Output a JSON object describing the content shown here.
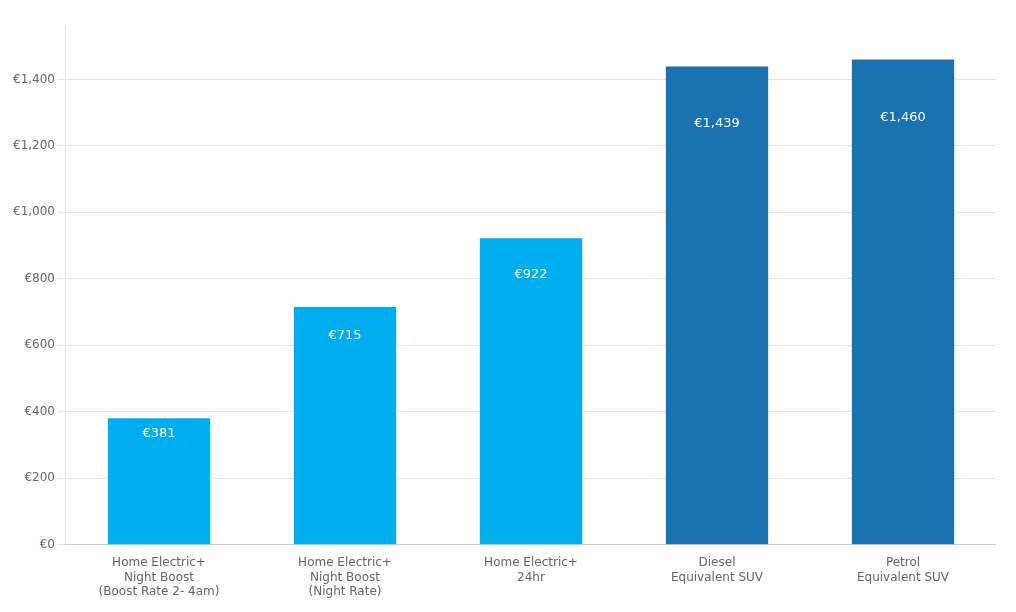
{
  "chart_data": {
    "type": "bar",
    "categories": [
      "Home Electric+\nNight Boost\n(Boost Rate 2- 4am)",
      "Home Electric+\nNight Boost\n(Night Rate)",
      "Home Electric+\n24hr",
      "Diesel\nEquivalent SUV",
      "Petrol\nEquivalent SUV"
    ],
    "values": [
      381,
      715,
      922,
      1439,
      1460
    ],
    "value_labels": [
      "€381",
      "€715",
      "€922",
      "€1,439",
      "€1,460"
    ],
    "data_labels": true,
    "colors": [
      "#00AEEF",
      "#00AEEF",
      "#00AEEF",
      "#1A72B0",
      "#1A72B0"
    ],
    "ylim": [
      0,
      1560
    ],
    "yticks": [
      {
        "value": 0,
        "label": "€0"
      },
      {
        "value": 200,
        "label": "€200"
      },
      {
        "value": 400,
        "label": "€400"
      },
      {
        "value": 600,
        "label": "€600"
      },
      {
        "value": 800,
        "label": "€800"
      },
      {
        "value": 1000,
        "label": "€1,000"
      },
      {
        "value": 1200,
        "label": "€1,200"
      },
      {
        "value": 1400,
        "label": "€1,400"
      }
    ],
    "grid": true
  }
}
